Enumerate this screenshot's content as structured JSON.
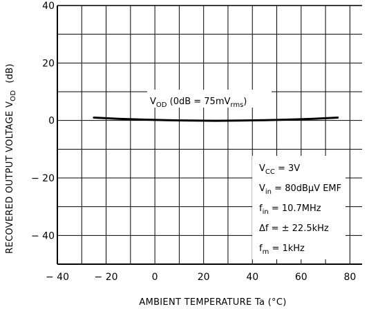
{
  "chart_data": {
    "type": "line",
    "xlabel": "AMBIENT TEMPERATURE   Ta   (°C)",
    "ylabel": {
      "main": "RECOVERED OUTPUT VOLTAGE   V",
      "sub": "OD",
      "unit": "(dB)"
    },
    "xlim": [
      -40,
      85
    ],
    "ylim": [
      -50,
      40
    ],
    "x_ticks": [
      -40,
      -20,
      0,
      20,
      40,
      60,
      80
    ],
    "x_tick_labels": [
      "− 40",
      "− 20",
      "0",
      "20",
      "40",
      "60",
      "80"
    ],
    "y_ticks": [
      40,
      20,
      0,
      -20,
      -40
    ],
    "y_tick_labels": [
      "40",
      "20",
      "0",
      "− 20",
      "− 40"
    ],
    "grid": true,
    "series": [
      {
        "name": "VOD (0dB = 75mVrms)",
        "x": [
          -25,
          -15,
          -5,
          5,
          15,
          25,
          35,
          45,
          55,
          65,
          75
        ],
        "y": [
          1.0,
          0.6,
          0.3,
          0.1,
          0.0,
          -0.1,
          0.0,
          0.1,
          0.3,
          0.6,
          1.0
        ]
      }
    ],
    "curve_label": {
      "pre": "V",
      "sub1": "OD",
      "mid": " (0dB = 75mV",
      "sub2": "rms",
      "post": ")"
    },
    "conditions": [
      {
        "pre": "V",
        "sub": "CC",
        "post": " = 3V"
      },
      {
        "pre": "V",
        "sub": "in",
        "post": " = 80dBμV  EMF"
      },
      {
        "pre": "f",
        "sub": "in",
        "post": " = 10.7MHz"
      },
      {
        "pre": "Δf = ± 22.5kHz",
        "sub": "",
        "post": ""
      },
      {
        "pre": "f",
        "sub": "m",
        "post": " = 1kHz"
      }
    ]
  }
}
